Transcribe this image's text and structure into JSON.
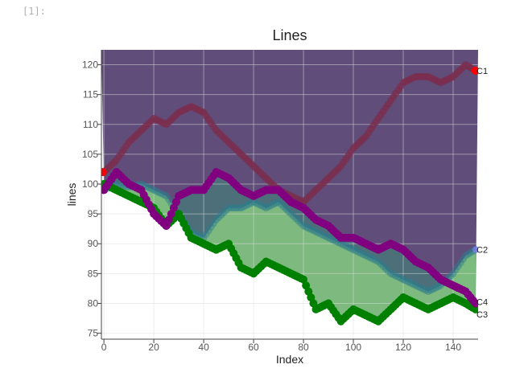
{
  "notebook": {
    "prompt": "[1]:"
  },
  "chart_data": {
    "type": "scatter",
    "title": "Lines",
    "xlabel": "Index",
    "ylabel": "lines",
    "xlim": [
      -1,
      150
    ],
    "ylim": [
      74,
      122.5
    ],
    "xticks": [
      0,
      20,
      40,
      60,
      80,
      100,
      120,
      140
    ],
    "yticks": [
      75,
      80,
      85,
      90,
      95,
      100,
      105,
      110,
      115,
      120
    ],
    "grid": true,
    "colors": {
      "C1": "#7b2e4e",
      "C2": "#2e7d8c",
      "C3": "#008000",
      "C4": "#800080",
      "start_marker": "#ff0000",
      "end_marker_c1": "#ff0000",
      "end_marker_c2": "#8080ff",
      "fill_top": "#4a3466",
      "fill_teal": "#3d8c7a",
      "fill_green": "#80c080"
    },
    "series": [
      {
        "name": "C1",
        "x": [
          0,
          5,
          10,
          15,
          20,
          25,
          30,
          35,
          40,
          45,
          50,
          55,
          60,
          65,
          70,
          75,
          80,
          85,
          90,
          95,
          100,
          105,
          110,
          115,
          120,
          125,
          130,
          135,
          140,
          145,
          149
        ],
        "values": [
          102,
          104,
          107,
          109,
          111,
          110,
          112,
          113,
          112,
          109,
          107,
          105,
          103,
          101,
          99,
          98,
          97,
          99,
          101,
          103,
          106,
          108,
          111,
          114,
          117,
          118,
          118,
          117,
          118,
          120,
          119
        ]
      },
      {
        "name": "C2",
        "x": [
          0,
          5,
          10,
          15,
          20,
          25,
          30,
          35,
          40,
          45,
          50,
          55,
          60,
          65,
          70,
          75,
          80,
          85,
          90,
          95,
          100,
          105,
          110,
          115,
          120,
          125,
          130,
          135,
          140,
          145,
          149
        ],
        "values": [
          99,
          100,
          99.5,
          100,
          99,
          98,
          95,
          92,
          91,
          94,
          96,
          96,
          97,
          96,
          97,
          95,
          93,
          92,
          91,
          90,
          89,
          88,
          87,
          85,
          84,
          83,
          82,
          83,
          85,
          88,
          89
        ]
      },
      {
        "name": "C3",
        "x": [
          0,
          5,
          10,
          15,
          20,
          25,
          30,
          35,
          40,
          45,
          50,
          55,
          60,
          65,
          70,
          75,
          80,
          85,
          90,
          95,
          100,
          105,
          110,
          115,
          120,
          125,
          130,
          135,
          140,
          145,
          149
        ],
        "values": [
          100,
          99,
          98,
          97,
          96,
          93,
          95,
          91,
          90,
          89,
          90,
          86,
          85,
          87,
          86,
          85,
          84,
          79,
          80,
          77,
          79,
          78,
          77,
          79,
          81,
          80,
          79,
          80,
          81,
          80,
          79
        ]
      },
      {
        "name": "C4",
        "x": [
          0,
          5,
          10,
          15,
          20,
          25,
          30,
          35,
          40,
          45,
          50,
          55,
          60,
          65,
          70,
          75,
          80,
          85,
          90,
          95,
          100,
          105,
          110,
          115,
          120,
          125,
          130,
          135,
          140,
          145,
          149
        ],
        "values": [
          99,
          102,
          100,
          99,
          95,
          93,
          98,
          99,
          99,
          102,
          101,
          99,
          98,
          99,
          99,
          97,
          96,
          94,
          93,
          91,
          91,
          90,
          89,
          90,
          89,
          87,
          86,
          84,
          83,
          82,
          80
        ]
      }
    ],
    "end_labels": [
      "C1",
      "C2",
      "C4",
      "C3"
    ]
  }
}
